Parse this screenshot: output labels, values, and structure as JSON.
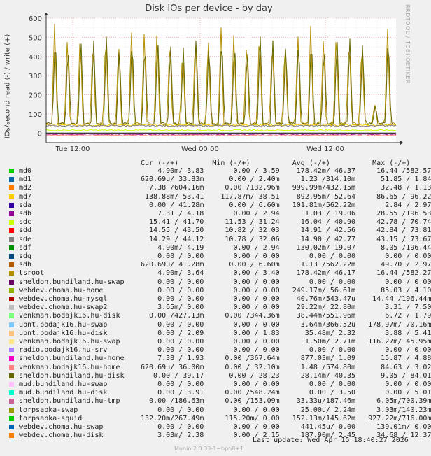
{
  "title": "Disk IOs per device - by day",
  "side_label": "RRDTOOL / TOBI OETIKER",
  "footer": "Munin 2.0.33-1~bpo8+1",
  "last_update": "Last update: Wed Apr 15 18:40:27 2026",
  "legend_header": "Cur (-/+)        Min (-/+)          Avg (-/+)          Max (-/+)",
  "chart_data": {
    "type": "line",
    "title": "Disk IOs per device - by day",
    "ylabel": "IOs/second read (-) / write (+)",
    "ylim": [
      -50,
      600
    ],
    "yticks": [
      "600",
      "500",
      "400",
      "300",
      "200",
      "100",
      "0"
    ],
    "xticks": [
      "Tue 12:00",
      "Wed 00:00",
      "Wed 12:00"
    ],
    "grid": true,
    "series": [
      {
        "name": "md0",
        "color": "#00cc00",
        "cur": "4.90m/ 3.83",
        "min": "0.00 / 3.59",
        "avg": "178.42m/ 46.37",
        "max": "16.44 /582.57"
      },
      {
        "name": "md1",
        "color": "#0066b3",
        "cur": "620.69u/ 33.83m",
        "min": "0.00 / 2.40m",
        "avg": "1.23 /314.10m",
        "max": "51.85 / 1.84"
      },
      {
        "name": "md2",
        "color": "#ff8000",
        "cur": "7.38 /604.16m",
        "min": "0.00 /132.96m",
        "avg": "999.99m/432.15m",
        "max": "32.48 / 1.13"
      },
      {
        "name": "md7",
        "color": "#ffcc00",
        "cur": "138.88m/ 53.41",
        "min": "117.87m/ 38.51",
        "avg": "892.95m/ 52.64",
        "max": "86.65 / 96.22"
      },
      {
        "name": "sda",
        "color": "#330099",
        "cur": "0.00 / 41.28m",
        "min": "0.00 / 6.60m",
        "avg": "101.81m/562.22m",
        "max": "2.84 / 2.97"
      },
      {
        "name": "sdb",
        "color": "#990099",
        "cur": "7.31 / 4.18",
        "min": "0.00 / 2.94",
        "avg": "1.03 / 19.06",
        "max": "28.55 /196.53"
      },
      {
        "name": "sdc",
        "color": "#ccff00",
        "cur": "15.41 / 41.70",
        "min": "11.53 / 31.24",
        "avg": "16.04 / 40.90",
        "max": "42.78 / 70.74"
      },
      {
        "name": "sdd",
        "color": "#ff0000",
        "cur": "14.55 / 43.50",
        "min": "10.82 / 32.03",
        "avg": "14.91 / 42.56",
        "max": "42.84 / 73.81"
      },
      {
        "name": "sde",
        "color": "#808080",
        "cur": "14.29 / 44.12",
        "min": "10.78 / 32.06",
        "avg": "14.90 / 42.77",
        "max": "43.15 / 73.67"
      },
      {
        "name": "sdf",
        "color": "#008f00",
        "cur": "4.90m/ 4.19",
        "min": "0.00 / 2.94",
        "avg": "130.02m/ 19.07",
        "max": "8.05 /196.44"
      },
      {
        "name": "sdg",
        "color": "#00487d",
        "cur": "0.00 / 0.00",
        "min": "0.00 / 0.00",
        "avg": "0.00 / 0.00",
        "max": "0.00 / 0.00"
      },
      {
        "name": "sdh",
        "color": "#b35a00",
        "cur": "620.69u/ 41.28m",
        "min": "0.00 / 6.60m",
        "avg": "1.13 /562.22m",
        "max": "49.70 / 2.97"
      },
      {
        "name": "tsroot",
        "color": "#b38f00",
        "cur": "4.90m/ 3.64",
        "min": "0.00 / 3.40",
        "avg": "178.42m/ 46.17",
        "max": "16.44 /582.27"
      },
      {
        "name": "sheldon.bundiland.hu-swap",
        "color": "#6b006b",
        "cur": "0.00 / 0.00",
        "min": "0.00 / 0.00",
        "avg": "0.00 / 0.00",
        "max": "0.00 / 0.00"
      },
      {
        "name": "webdev.choma.hu-home",
        "color": "#8fb300",
        "cur": "0.00 / 0.00",
        "min": "0.00 / 0.00",
        "avg": "249.17m/ 56.61m",
        "max": "85.03 / 4.10"
      },
      {
        "name": "webdev.choma.hu-mysql",
        "color": "#b30000",
        "cur": "0.00 / 0.00",
        "min": "0.00 / 0.00",
        "avg": "40.76m/543.47u",
        "max": "14.44 /196.44m"
      },
      {
        "name": "webdev.choma.hu-swap2",
        "color": "#bebebe",
        "cur": "3.65m/ 0.00",
        "min": "0.00 / 0.00",
        "avg": "29.22m/ 22.80m",
        "max": "3.31 / 7.50"
      },
      {
        "name": "venkman.bodajk16.hu-disk",
        "color": "#80ff80",
        "cur": "0.00 /427.13m",
        "min": "0.00 /344.36m",
        "avg": "38.44m/551.96m",
        "max": "6.72 / 1.79"
      },
      {
        "name": "ubnt.bodajk16.hu-swap",
        "color": "#80c9ff",
        "cur": "0.00 / 0.00",
        "min": "0.00 / 0.00",
        "avg": "3.64m/366.52u",
        "max": "178.97m/ 70.16m"
      },
      {
        "name": "ubnt.bodajk16.hu-disk",
        "color": "#ffc080",
        "cur": "0.00 / 2.09",
        "min": "0.00 / 1.83",
        "avg": "35.48m/ 2.32",
        "max": "3.88 / 5.41"
      },
      {
        "name": "venkman.bodajk16.hu-swap",
        "color": "#ffe680",
        "cur": "0.00 / 0.00",
        "min": "0.00 / 0.00",
        "avg": "1.50m/ 2.71m",
        "max": "116.27m/ 45.95m"
      },
      {
        "name": "radio.bodajk16.hu-srv",
        "color": "#aa80ff",
        "cur": "0.00 / 0.00",
        "min": "0.00 / 0.00",
        "avg": "0.00 / 0.00",
        "max": "0.00 / 0.00"
      },
      {
        "name": "sheldon.bundiland.hu-home",
        "color": "#ee00cc",
        "cur": "7.38 / 1.93",
        "min": "0.00 /367.64m",
        "avg": "877.03m/ 1.09",
        "max": "15.87 / 4.88"
      },
      {
        "name": "venkman.bodajk16.hu-home",
        "color": "#ff8080",
        "cur": "620.69u/ 36.00m",
        "min": "0.00 / 32.10m",
        "avg": "1.48 /574.80m",
        "max": "84.63 / 3.02"
      },
      {
        "name": "sheldon.bundiland.hu-disk",
        "color": "#666600",
        "cur": "0.00 / 39.17",
        "min": "0.00 / 28.23",
        "avg": "28.14m/ 40.35",
        "max": "9.05 / 84.01"
      },
      {
        "name": "mud.bundiland.hu-swap",
        "color": "#ffbfff",
        "cur": "0.00 / 0.00",
        "min": "0.00 / 0.00",
        "avg": "0.00 / 0.00",
        "max": "0.00 / 0.00"
      },
      {
        "name": "mud.bundiland.hu-disk",
        "color": "#00ffcc",
        "cur": "0.00 / 3.91",
        "min": "0.00 /548.24m",
        "avg": "0.00 / 3.50",
        "max": "0.00 / 5.01"
      },
      {
        "name": "sheldon.bundiland.hu-tmp",
        "color": "#cc6699",
        "cur": "0.00 /186.63m",
        "min": "0.00 /153.09m",
        "avg": "33.33u/187.46m",
        "max": "6.05m/700.39m"
      },
      {
        "name": "torpsapka-swap",
        "color": "#999900",
        "cur": "0.00 / 0.00",
        "min": "0.00 / 0.00",
        "avg": "25.00u/ 2.24m",
        "max": "3.03m/140.23m"
      },
      {
        "name": "torpsapka-squid",
        "color": "#00cc00",
        "cur": "132.20m/267.49m",
        "min": "115.20m/ 0.00",
        "avg": "152.13m/145.62m",
        "max": "927.22m/716.00m"
      },
      {
        "name": "webdev.choma.hu-swap",
        "color": "#0066b3",
        "cur": "0.00 / 0.00",
        "min": "0.00 / 0.00",
        "avg": "441.45u/ 0.00",
        "max": "139.01m/ 0.00"
      },
      {
        "name": "webdev.choma.hu-disk",
        "color": "#ff8000",
        "cur": "3.03m/ 2.38",
        "min": "0.00 / 2.15",
        "avg": "187.90m/ 2.45",
        "max": "34.68 / 12.37"
      }
    ]
  }
}
